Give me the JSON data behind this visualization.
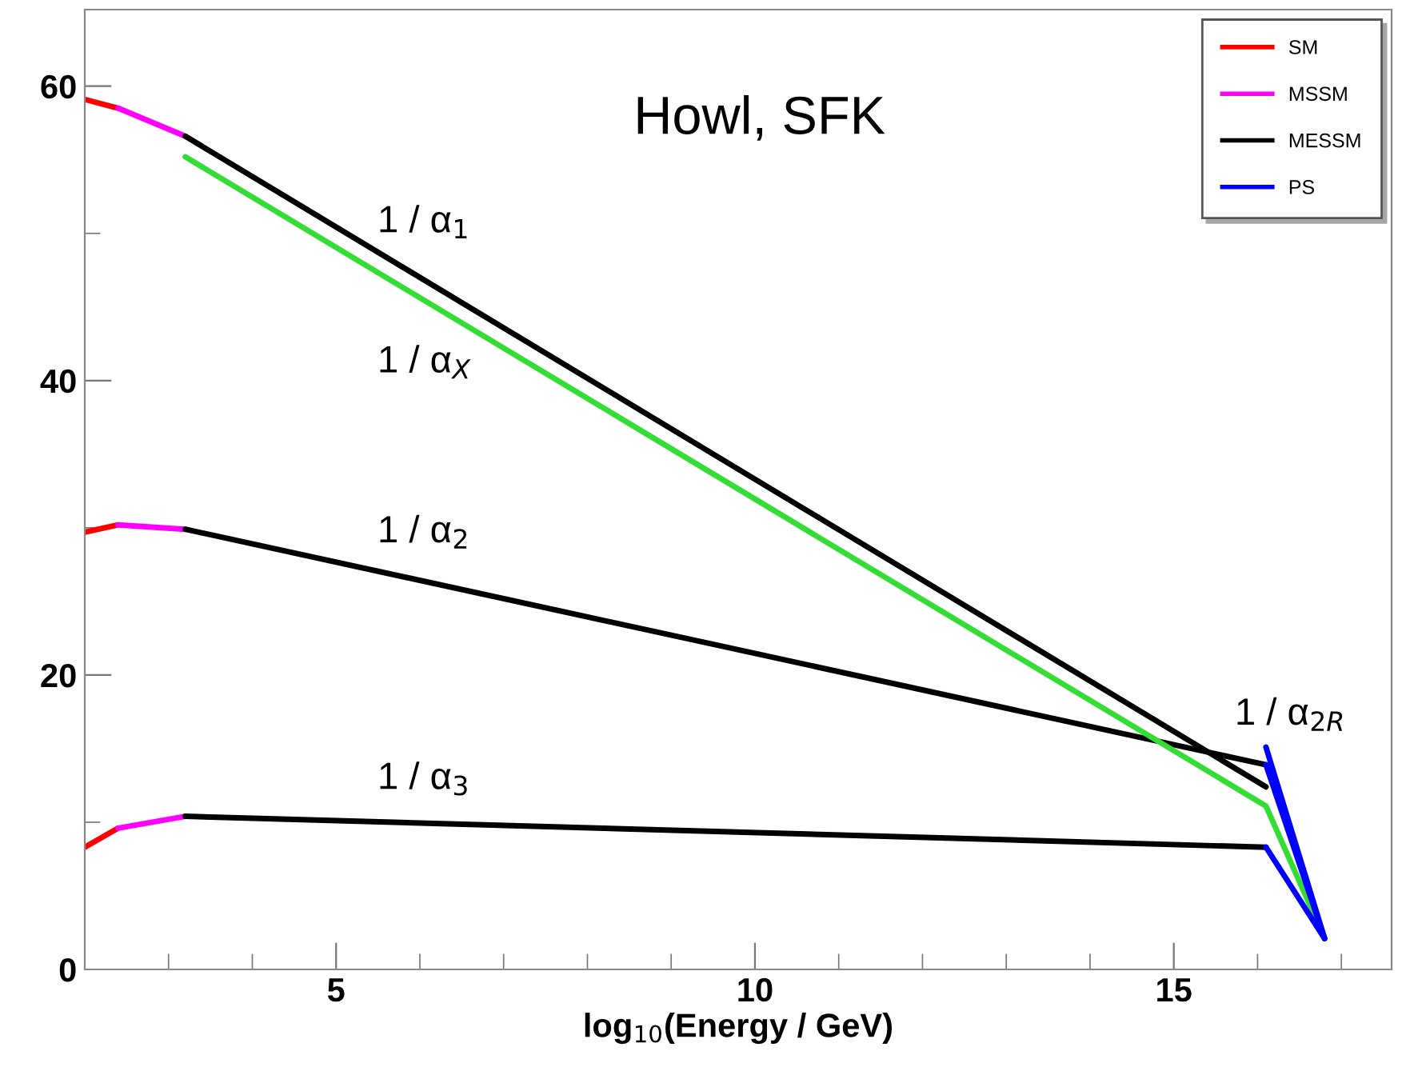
{
  "chart_data": {
    "type": "line",
    "xlabel": "log$_{10}$(Energy / GeV)",
    "xlim": [
      2,
      17.6
    ],
    "ylim": [
      0,
      65.2
    ],
    "xticks": [
      {
        "value": 3,
        "label": null
      },
      {
        "value": 4,
        "label": null
      },
      5,
      {
        "value": 6,
        "label": null
      },
      {
        "value": 7,
        "label": null
      },
      {
        "value": 8,
        "label": null
      },
      {
        "value": 9,
        "label": null
      },
      10,
      {
        "value": 11,
        "label": null
      },
      {
        "value": 12,
        "label": null
      },
      {
        "value": 13,
        "label": null
      },
      {
        "value": 14,
        "label": null
      },
      15,
      {
        "value": 16,
        "label": null
      },
      {
        "value": 17,
        "label": null
      }
    ],
    "yticks": [
      0,
      {
        "value": 10,
        "label": null
      },
      20,
      {
        "value": 30,
        "label": null
      },
      40,
      {
        "value": 50,
        "label": null
      },
      60
    ],
    "grid": false,
    "legend": "top right",
    "line_style": "solid",
    "marker": "none",
    "series": [
      {
        "name": "SM",
        "color": "#ff0000",
        "x": [
          2,
          2.4
        ],
        "values": [
          59.1,
          58.5
        ]
      },
      {
        "color": "#ff0000",
        "x": [
          2,
          2.4
        ],
        "values": [
          29.7,
          30.2
        ]
      },
      {
        "color": "#ff0000",
        "x": [
          2,
          2.4
        ],
        "values": [
          8.3,
          9.6
        ]
      },
      {
        "name": "MSSM",
        "color": "#ff00ff",
        "x": [
          2.4,
          3.2
        ],
        "values": [
          58.5,
          56.6
        ]
      },
      {
        "color": "#ff00ff",
        "x": [
          2.4,
          3.2
        ],
        "values": [
          30.2,
          29.9
        ]
      },
      {
        "color": "#ff00ff",
        "x": [
          2.4,
          3.2
        ],
        "values": [
          9.6,
          10.4
        ]
      },
      {
        "name": "MESSM",
        "color": "#000000",
        "x": [
          3.2,
          16.1
        ],
        "values": [
          56.6,
          12.4
        ]
      },
      {
        "color": "#000000",
        "x": [
          3.2,
          16.1
        ],
        "values": [
          29.9,
          13.9
        ]
      },
      {
        "color": "#000000",
        "x": [
          3.2,
          16.1
        ],
        "values": [
          10.4,
          8.3
        ]
      },
      {
        "color": "#33dd33",
        "x": [
          3.2,
          16.1,
          16.8
        ],
        "values": [
          55.2,
          11.1,
          2.1
        ]
      },
      {
        "name": "PS",
        "color": "#0000ff",
        "x": [
          16.1,
          16.8
        ],
        "values": [
          15.1,
          2.1
        ]
      },
      {
        "color": "#0000ff",
        "x": [
          16.1,
          16.8
        ],
        "values": [
          13.9,
          2.1
        ]
      },
      {
        "color": "#0000ff",
        "x": [
          16.1,
          16.8
        ],
        "values": [
          8.3,
          2.1
        ]
      }
    ],
    "annotations": [
      "1 / α$_{1}$",
      "1 / α$_{X}$",
      "1 / α$_{2}$",
      "1 / α$_{3}$",
      "1 / α$_{2R}$",
      "Howl, SFK"
    ]
  }
}
